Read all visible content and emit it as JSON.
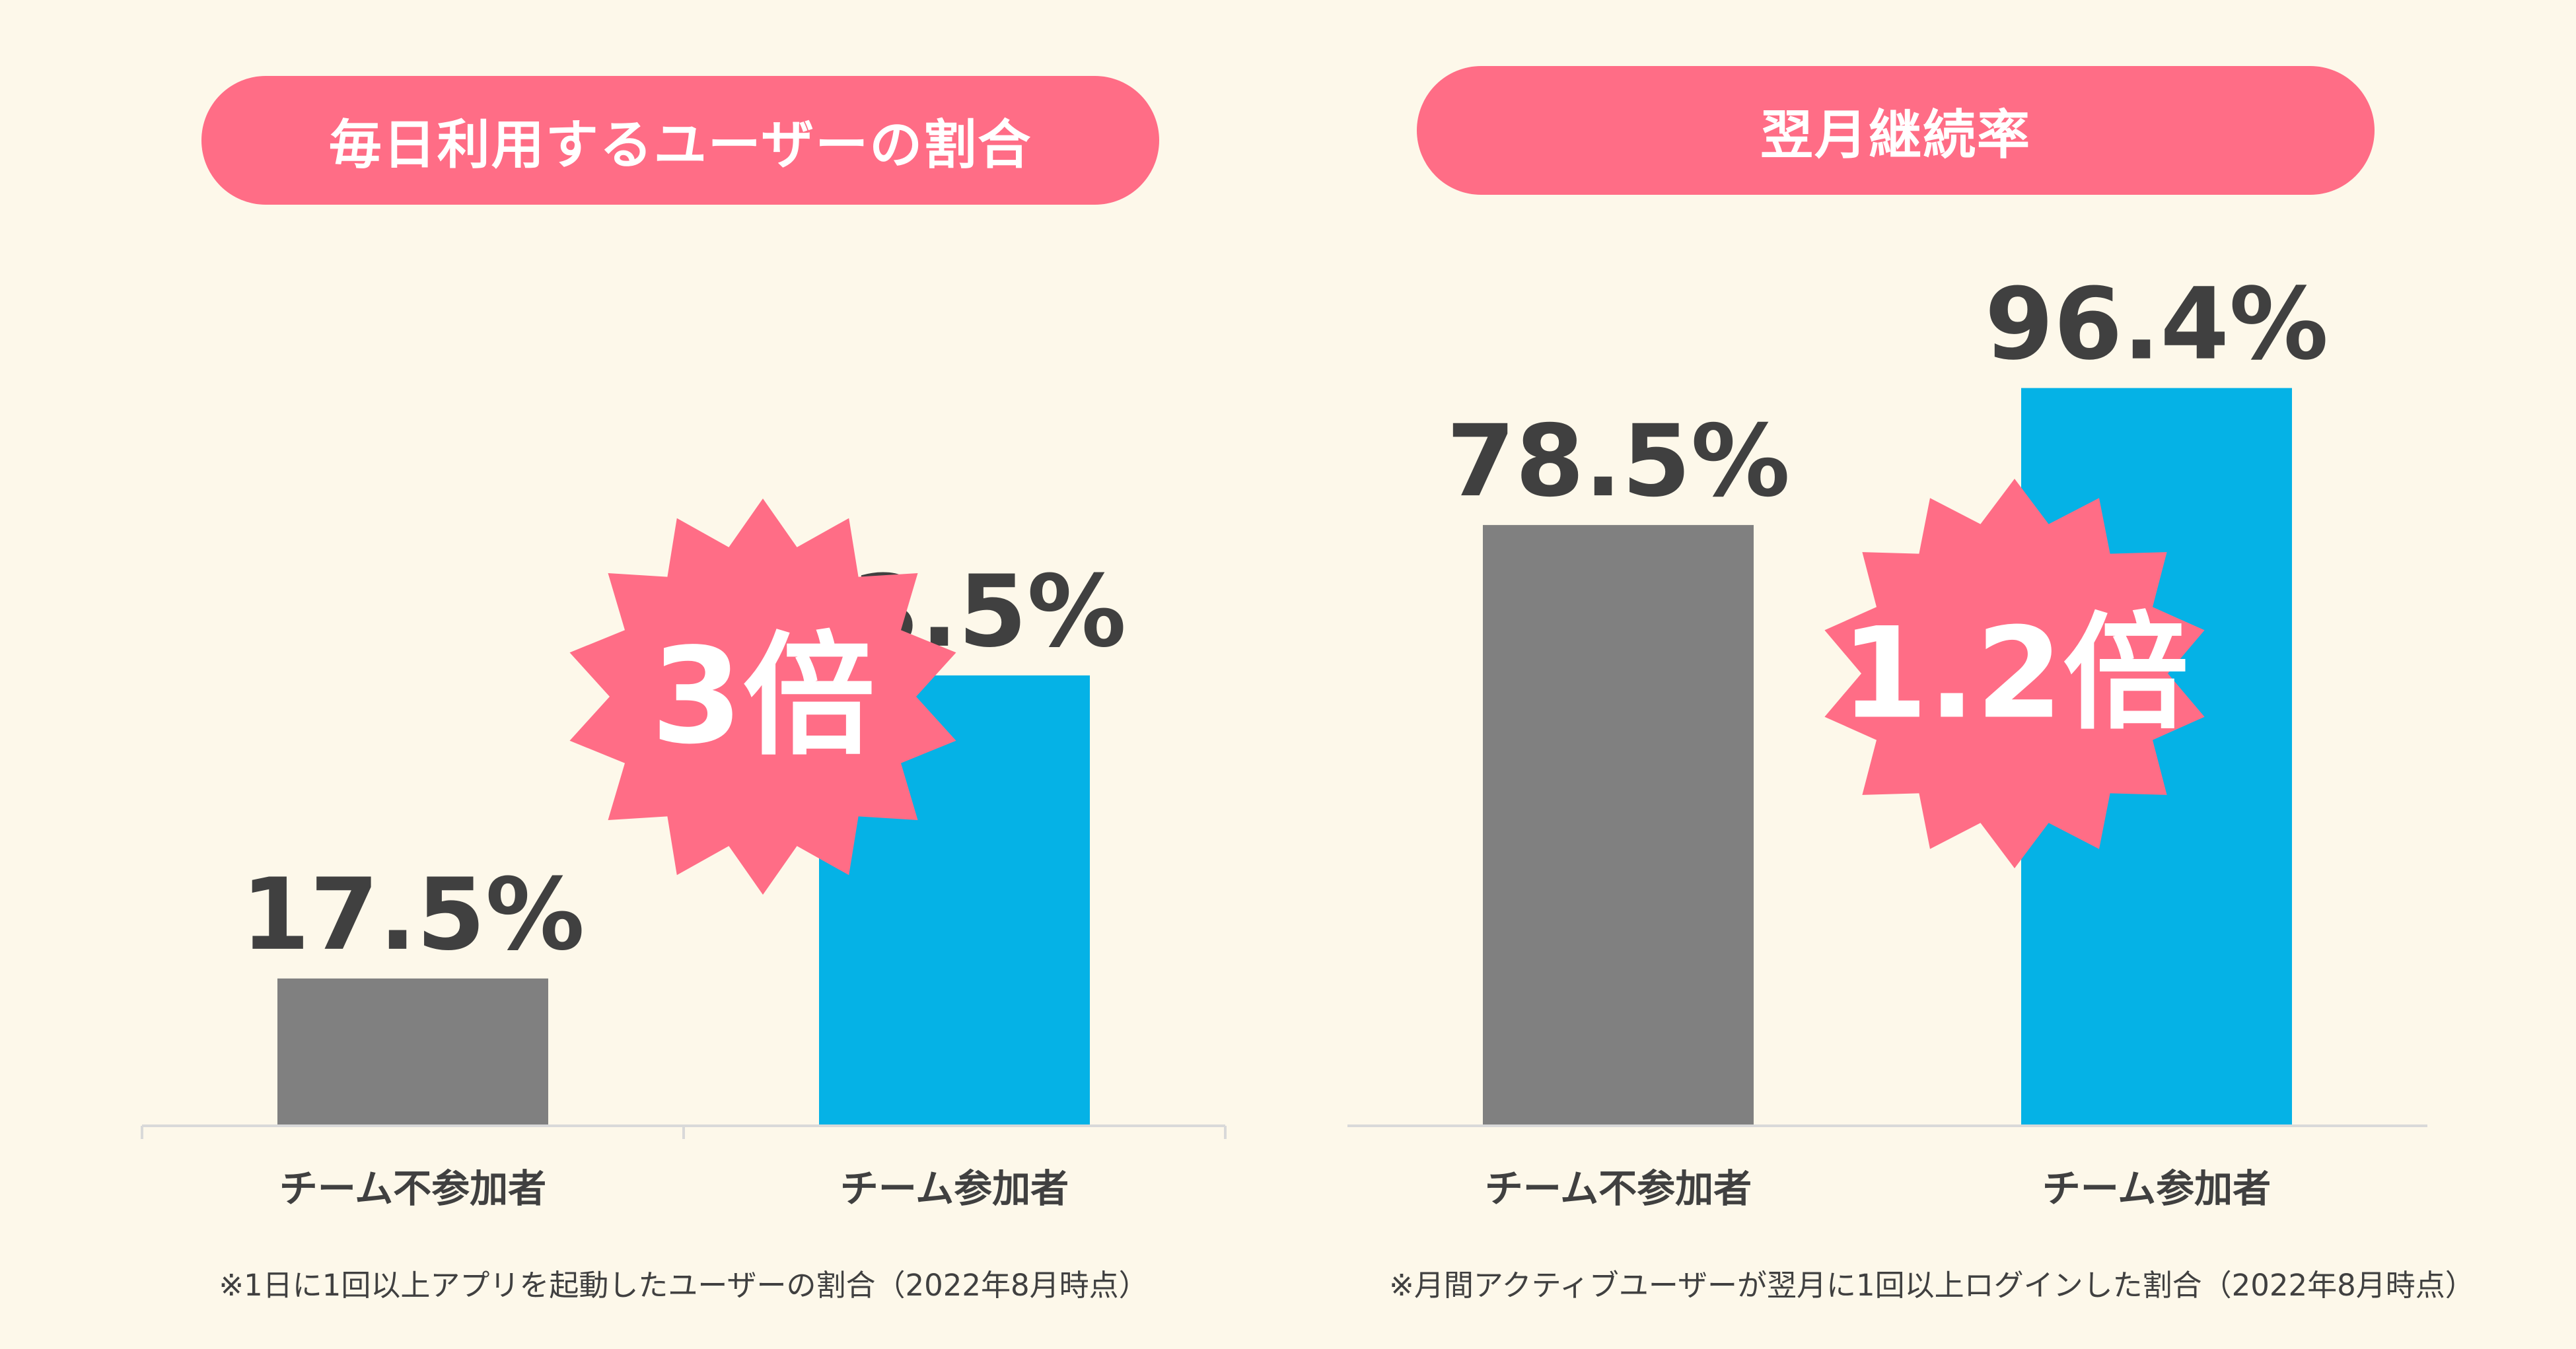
{
  "colors": {
    "background": "#fdf8ea",
    "accent_pink": "#ff6d86",
    "bar_gray": "#808080",
    "bar_blue": "#05b2e6",
    "text": "#404040"
  },
  "chart_data": [
    {
      "type": "bar",
      "title": "毎日利用するユーザーの割合",
      "categories": [
        "チーム不参加者",
        "チーム参加者"
      ],
      "values": [
        17.5,
        53.5
      ],
      "value_labels": [
        "17.5%",
        "53.5%"
      ],
      "bar_colors": [
        "#808080",
        "#05b2e6"
      ],
      "ylim": [
        0,
        100
      ],
      "grid": false,
      "badge": "3倍",
      "footnote": "※1日に1回以上アプリを起動したユーザーの割合（2022年8月時点）"
    },
    {
      "type": "bar",
      "title": "翌月継続率",
      "categories": [
        "チーム不参加者",
        "チーム参加者"
      ],
      "values": [
        78.5,
        96.4
      ],
      "value_labels": [
        "78.5%",
        "96.4%"
      ],
      "bar_colors": [
        "#808080",
        "#05b2e6"
      ],
      "ylim": [
        0,
        110
      ],
      "grid": false,
      "badge": "1.2倍",
      "footnote": "※月間アクティブユーザーが翌月に1回以上ログインした割合（2022年8月時点）"
    }
  ]
}
